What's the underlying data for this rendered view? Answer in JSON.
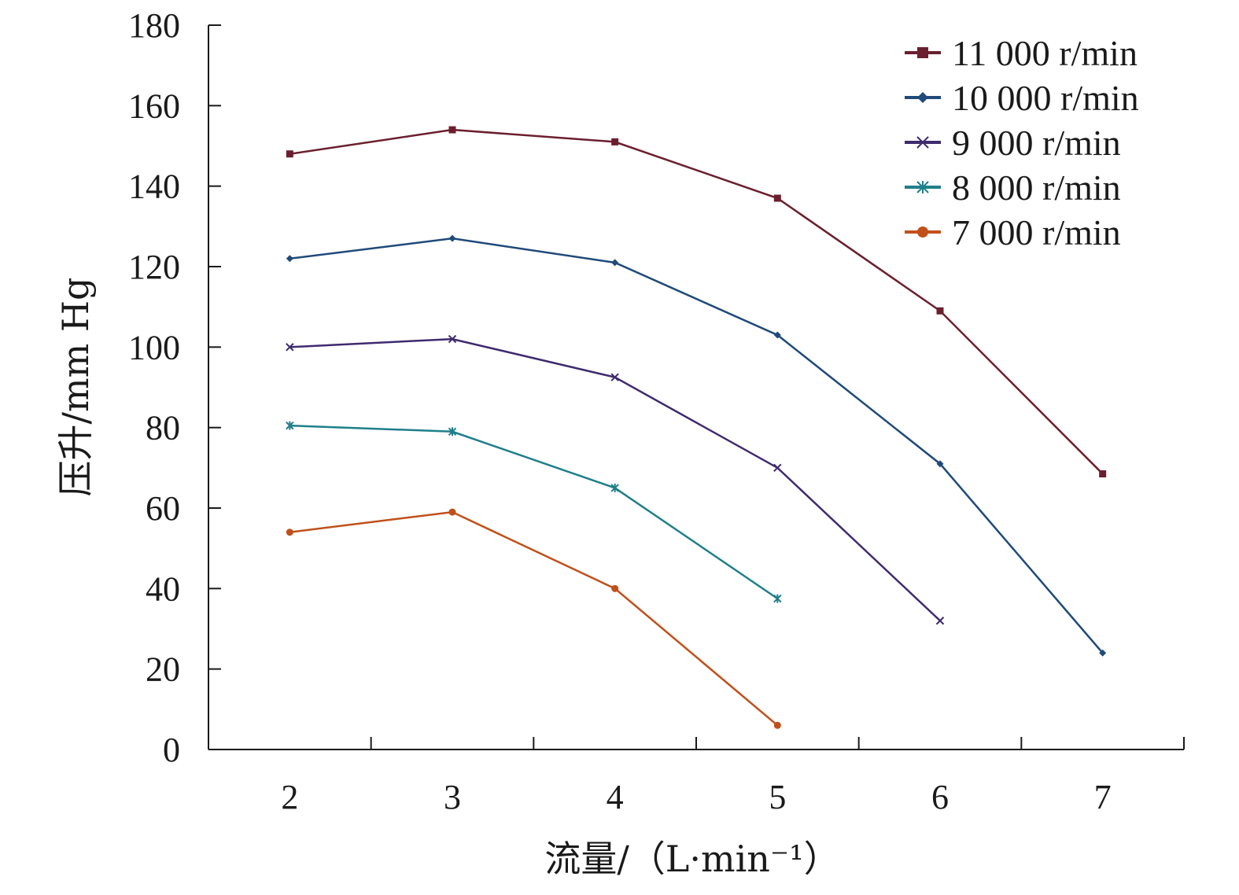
{
  "chart_data": {
    "type": "line",
    "title": "",
    "xlabel": "流量/（L·min⁻¹）",
    "ylabel": "压升/mm Hg",
    "x": [
      2,
      3,
      4,
      5,
      6,
      7
    ],
    "xlim": [
      1.5,
      7.5
    ],
    "ylim": [
      0,
      180
    ],
    "yticks": [
      0,
      20,
      40,
      60,
      80,
      100,
      120,
      140,
      160,
      180
    ],
    "grid": false,
    "legend_position": "top-right",
    "series": [
      {
        "name": "11 000 r/min",
        "color": "#6b1f2e",
        "marker": "square",
        "values": [
          148,
          154,
          151,
          137,
          109,
          68.5
        ]
      },
      {
        "name": "10 000 r/min",
        "color": "#1f4a7a",
        "marker": "diamond",
        "values": [
          122,
          127,
          121,
          103,
          71,
          24
        ]
      },
      {
        "name": "9 000 r/min",
        "color": "#3f2a6e",
        "marker": "x",
        "values": [
          100,
          102,
          92.5,
          70,
          32,
          null
        ]
      },
      {
        "name": "8 000 r/min",
        "color": "#1f7f8a",
        "marker": "star",
        "values": [
          80.5,
          79,
          65,
          37.5,
          null,
          null
        ]
      },
      {
        "name": "7 000 r/min",
        "color": "#c0501a",
        "marker": "circle",
        "values": [
          54,
          59,
          40,
          6,
          null,
          null
        ]
      }
    ]
  }
}
